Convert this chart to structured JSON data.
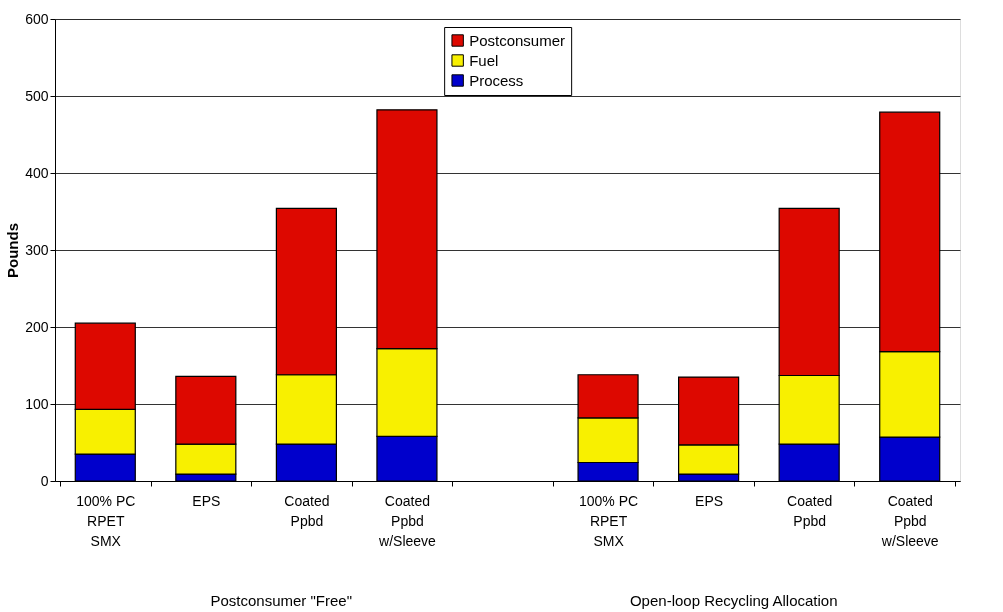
{
  "chart_data": {
    "type": "bar",
    "stacked": true,
    "ylabel": "Pounds",
    "categories": [
      "100% PC\nRPET\nSMX",
      "EPS",
      "Coated\nPpbd",
      "Coated\nPpbd\nw/Sleeve",
      null,
      "100% PC\nRPET\nSMX",
      "EPS",
      "Coated\nPpbd",
      "Coated\nPpbd\nw/Sleeve"
    ],
    "series": [
      {
        "name": "Process",
        "color": "#0000cc",
        "values": [
          35,
          9,
          48,
          58,
          null,
          24,
          9,
          48,
          57
        ]
      },
      {
        "name": "Fuel",
        "color": "#f8f000",
        "values": [
          58,
          39,
          90,
          114,
          null,
          58,
          38,
          89,
          111
        ]
      },
      {
        "name": "Postconsumer",
        "color": "#dd0800",
        "values": [
          112,
          88,
          216,
          310,
          null,
          56,
          88,
          217,
          311
        ]
      }
    ],
    "ylim": [
      0,
      600
    ],
    "yticks": [
      0,
      100,
      200,
      300,
      400,
      500,
      600
    ],
    "grid": "y",
    "legend": "top",
    "annotations": [
      "Postconsumer \"Free\"",
      "Open-loop Recycling Allocation"
    ]
  }
}
